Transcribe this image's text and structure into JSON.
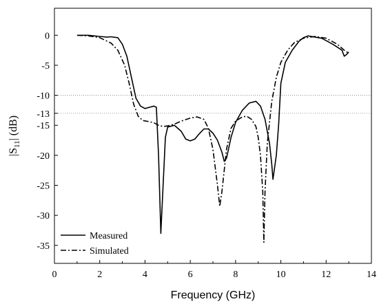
{
  "chart_data": {
    "type": "line",
    "xlabel": "Frequency (GHz)",
    "ylabel": {
      "prefix": "|S",
      "subscript": "11",
      "suffix": "| (dB)"
    },
    "xlim": [
      0,
      14
    ],
    "ylim": [
      -38,
      4.5
    ],
    "xticks": [
      0,
      2,
      4,
      6,
      8,
      10,
      12,
      14
    ],
    "yticks": [
      0,
      -5,
      -10,
      -13,
      -15,
      -20,
      -25,
      -30,
      -35
    ],
    "reference_lines": [
      -10,
      -13
    ],
    "legend_position": "bottom-left",
    "series": [
      {
        "name": "Measured",
        "style": "solid",
        "color": "#000000",
        "points": [
          [
            1.0,
            0
          ],
          [
            1.5,
            0
          ],
          [
            2.0,
            -0.2
          ],
          [
            2.3,
            -0.3
          ],
          [
            2.5,
            -0.25
          ],
          [
            2.8,
            -0.4
          ],
          [
            3.0,
            -1.5
          ],
          [
            3.2,
            -3.5
          ],
          [
            3.4,
            -7
          ],
          [
            3.6,
            -10.5
          ],
          [
            3.8,
            -11.8
          ],
          [
            4.0,
            -12.2
          ],
          [
            4.2,
            -12
          ],
          [
            4.4,
            -11.8
          ],
          [
            4.5,
            -12
          ],
          [
            4.6,
            -20
          ],
          [
            4.7,
            -33
          ],
          [
            4.8,
            -25
          ],
          [
            4.9,
            -17
          ],
          [
            5.0,
            -15.3
          ],
          [
            5.3,
            -15
          ],
          [
            5.6,
            -16
          ],
          [
            5.8,
            -17.3
          ],
          [
            6.0,
            -17.6
          ],
          [
            6.2,
            -17.3
          ],
          [
            6.4,
            -16.4
          ],
          [
            6.6,
            -15.6
          ],
          [
            6.8,
            -15.6
          ],
          [
            7.0,
            -16.3
          ],
          [
            7.2,
            -17.5
          ],
          [
            7.4,
            -19.5
          ],
          [
            7.5,
            -21
          ],
          [
            7.6,
            -20.5
          ],
          [
            7.8,
            -17
          ],
          [
            8.0,
            -14.5
          ],
          [
            8.3,
            -12.5
          ],
          [
            8.6,
            -11.3
          ],
          [
            8.9,
            -11
          ],
          [
            9.1,
            -11.8
          ],
          [
            9.3,
            -14
          ],
          [
            9.5,
            -18
          ],
          [
            9.6,
            -21.5
          ],
          [
            9.65,
            -24
          ],
          [
            9.8,
            -20
          ],
          [
            9.9,
            -15
          ],
          [
            10.0,
            -8
          ],
          [
            10.2,
            -4.5
          ],
          [
            10.5,
            -2.5
          ],
          [
            10.8,
            -1
          ],
          [
            11.0,
            -0.4
          ],
          [
            11.2,
            -0.1
          ],
          [
            11.5,
            -0.3
          ],
          [
            11.8,
            -0.5
          ],
          [
            12.0,
            -0.9
          ],
          [
            12.3,
            -1.5
          ],
          [
            12.5,
            -2
          ],
          [
            12.7,
            -2.5
          ],
          [
            12.8,
            -3.5
          ],
          [
            12.9,
            -3.2
          ],
          [
            13.0,
            -2.8
          ]
        ]
      },
      {
        "name": "Simulated",
        "style": "dashdot",
        "color": "#000000",
        "points": [
          [
            1.0,
            0
          ],
          [
            1.5,
            -0.1
          ],
          [
            2.0,
            -0.4
          ],
          [
            2.5,
            -1.3
          ],
          [
            2.8,
            -2.5
          ],
          [
            3.1,
            -5
          ],
          [
            3.3,
            -8
          ],
          [
            3.5,
            -11.5
          ],
          [
            3.7,
            -13.5
          ],
          [
            3.9,
            -14.2
          ],
          [
            4.2,
            -14.4
          ],
          [
            4.4,
            -14.6
          ],
          [
            4.6,
            -15
          ],
          [
            4.8,
            -15.2
          ],
          [
            5.0,
            -15.1
          ],
          [
            5.3,
            -14.8
          ],
          [
            5.6,
            -14.3
          ],
          [
            6.0,
            -13.8
          ],
          [
            6.3,
            -13.6
          ],
          [
            6.6,
            -14
          ],
          [
            6.8,
            -15.5
          ],
          [
            7.0,
            -19
          ],
          [
            7.2,
            -25
          ],
          [
            7.3,
            -28.5
          ],
          [
            7.4,
            -26
          ],
          [
            7.6,
            -19
          ],
          [
            7.8,
            -15.5
          ],
          [
            8.0,
            -14.3
          ],
          [
            8.3,
            -13.6
          ],
          [
            8.5,
            -13.5
          ],
          [
            8.7,
            -14
          ],
          [
            8.9,
            -15.2
          ],
          [
            9.0,
            -17
          ],
          [
            9.1,
            -20
          ],
          [
            9.2,
            -26
          ],
          [
            9.25,
            -34.5
          ],
          [
            9.3,
            -26
          ],
          [
            9.4,
            -18
          ],
          [
            9.6,
            -11
          ],
          [
            9.8,
            -7
          ],
          [
            10.0,
            -4.5
          ],
          [
            10.3,
            -2.5
          ],
          [
            10.6,
            -1.2
          ],
          [
            11.0,
            -0.5
          ],
          [
            11.5,
            -0.2
          ],
          [
            12.0,
            -0.5
          ],
          [
            12.5,
            -1.5
          ],
          [
            12.8,
            -2.5
          ],
          [
            13.0,
            -3
          ]
        ]
      }
    ]
  }
}
